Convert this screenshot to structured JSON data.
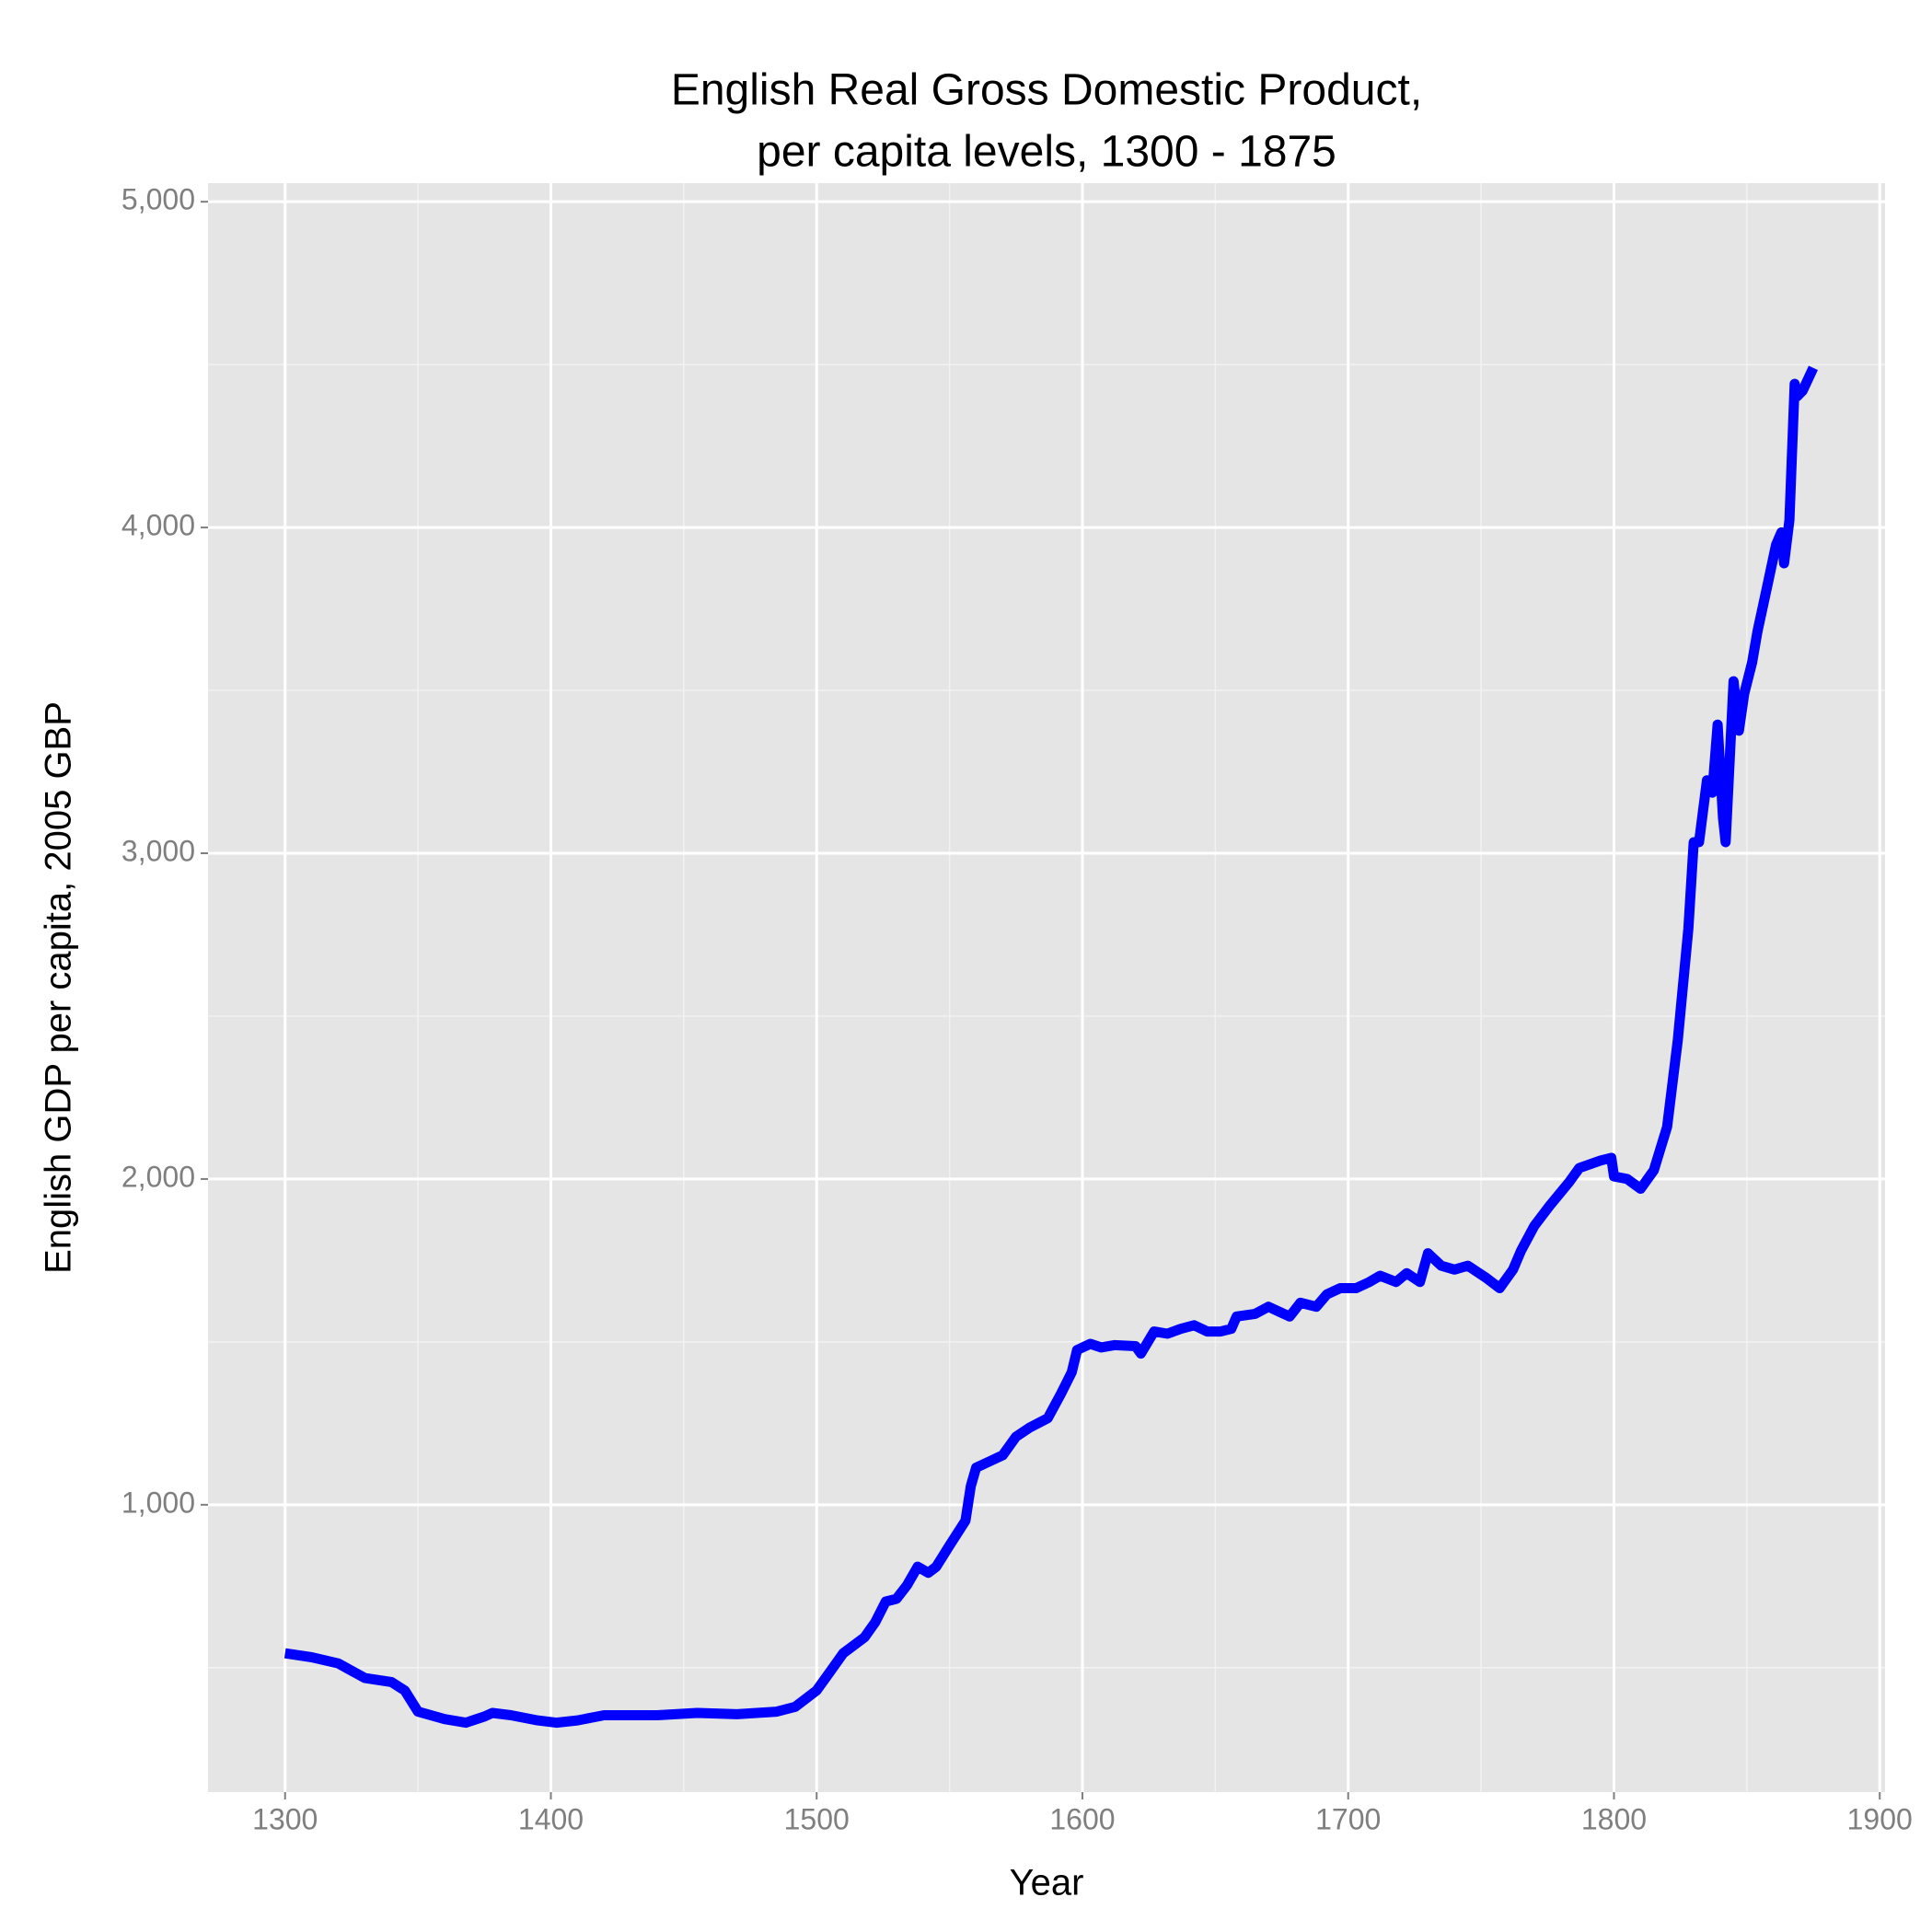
{
  "chart_data": {
    "type": "line",
    "title": [
      "English Real Gross Domestic Product,",
      "per capita levels, 1300 - 1875"
    ],
    "x_label": "Year",
    "y_label": "English GDP per capita, 2005 GBP",
    "color": "#0000ff",
    "xlim": [
      1271,
      1902
    ],
    "ylim": [
      118,
      5057
    ],
    "xticks": [
      1300,
      1400,
      1500,
      1600,
      1700,
      1800,
      1900
    ],
    "minor_xticks": [
      1350,
      1450,
      1550,
      1650,
      1750,
      1850
    ],
    "yticks": [
      {
        "value": 1000,
        "label": "1,000"
      },
      {
        "value": 2000,
        "label": "2,000"
      },
      {
        "value": 3000,
        "label": "3,000"
      },
      {
        "value": 4000,
        "label": "4,000"
      },
      {
        "value": 5000,
        "label": "5,000"
      }
    ],
    "minor_yticks": [
      500,
      1500,
      2500,
      3500,
      4500
    ],
    "grid": true,
    "x": [
      1300,
      1310,
      1320,
      1330,
      1340,
      1345,
      1350,
      1360,
      1368,
      1375,
      1378,
      1385,
      1395,
      1402,
      1410,
      1420,
      1440,
      1455,
      1470,
      1485,
      1492,
      1500,
      1505,
      1510,
      1518,
      1522,
      1526,
      1530,
      1534,
      1538,
      1542,
      1545,
      1550,
      1556,
      1558,
      1560,
      1565,
      1570,
      1575,
      1580,
      1587,
      1592,
      1596,
      1598,
      1603,
      1607,
      1612,
      1620,
      1622,
      1627,
      1632,
      1637,
      1642,
      1647,
      1652,
      1656,
      1658,
      1665,
      1670,
      1675,
      1678,
      1682,
      1688,
      1692,
      1697,
      1703,
      1708,
      1712,
      1718,
      1722,
      1727,
      1730,
      1735,
      1740,
      1745,
      1752,
      1757,
      1762,
      1765,
      1770,
      1776,
      1783,
      1787,
      1795,
      1799,
      1800,
      1805,
      1810,
      1815,
      1820,
      1824,
      1828,
      1830,
      1832,
      1835,
      1837,
      1839,
      1841,
      1842,
      1845,
      1847,
      1849,
      1852,
      1854,
      1856,
      1858,
      1861,
      1863,
      1864,
      1866,
      1868,
      1869,
      1871,
      1875
    ],
    "values": [
      544,
      532,
      513,
      468,
      456,
      430,
      365,
      342,
      331,
      350,
      361,
      354,
      338,
      331,
      338,
      354,
      354,
      361,
      357,
      365,
      380,
      430,
      487,
      544,
      593,
      639,
      703,
      711,
      753,
      810,
      791,
      810,
      875,
      951,
      1057,
      1114,
      1133,
      1152,
      1209,
      1236,
      1266,
      1342,
      1407,
      1475,
      1494,
      1483,
      1490,
      1487,
      1464,
      1532,
      1525,
      1540,
      1551,
      1532,
      1532,
      1540,
      1578,
      1586,
      1608,
      1589,
      1578,
      1620,
      1608,
      1646,
      1665,
      1665,
      1684,
      1703,
      1684,
      1711,
      1684,
      1772,
      1734,
      1722,
      1734,
      1696,
      1665,
      1722,
      1779,
      1856,
      1920,
      1989,
      2034,
      2057,
      2065,
      2008,
      2000,
      1970,
      2027,
      2160,
      2426,
      2768,
      3034,
      3034,
      3224,
      3186,
      3395,
      3110,
      3034,
      3528,
      3376,
      3490,
      3586,
      3681,
      3757,
      3833,
      3947,
      3985,
      3890,
      4023,
      4441,
      4403,
      4420,
      4490
    ]
  }
}
